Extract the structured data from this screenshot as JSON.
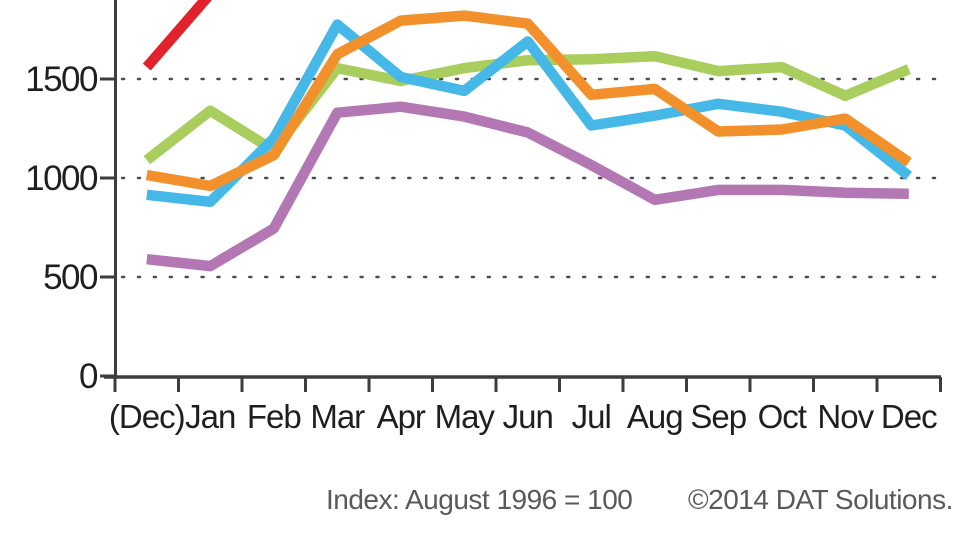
{
  "chart_data": {
    "type": "line",
    "categories": [
      "(Dec)",
      "Jan",
      "Feb",
      "Mar",
      "Apr",
      "May",
      "Jun",
      "Jul",
      "Aug",
      "Sep",
      "Oct",
      "Nov",
      "Dec"
    ],
    "y_ticks": [
      0,
      500,
      1000,
      1500
    ],
    "ylim_visible": [
      0,
      1900
    ],
    "grid": "dotted horizontal lines at 500, 1000, 1500",
    "legend_position": "none-visible (chart cropped at top)",
    "series": [
      {
        "name": "purple-series",
        "color": "#b377b3",
        "values": [
          590,
          555,
          745,
          1330,
          1360,
          1310,
          1230,
          1065,
          890,
          940,
          940,
          925,
          920
        ]
      },
      {
        "name": "green-series",
        "color": "#a9ce5d",
        "values": [
          1090,
          1340,
          1140,
          1555,
          1490,
          1555,
          1595,
          1600,
          1615,
          1540,
          1560,
          1415,
          1550
        ]
      },
      {
        "name": "blue-series",
        "color": "#45b8e8",
        "values": [
          915,
          880,
          1200,
          1775,
          1510,
          1440,
          1690,
          1265,
          1315,
          1375,
          1335,
          1265,
          1010
        ]
      },
      {
        "name": "orange-series",
        "color": "#f2912c",
        "values": [
          1015,
          960,
          1115,
          1625,
          1795,
          1820,
          1780,
          1420,
          1450,
          1235,
          1245,
          1300,
          1080
        ]
      },
      {
        "name": "red-series",
        "color": "#e2222b",
        "values": [
          1560,
          1930,
          null,
          null,
          null,
          null,
          null,
          null,
          null,
          null,
          null,
          null,
          null
        ]
      }
    ],
    "footnote": "Index: August 1996 = 100",
    "copyright": "©2014 DAT Solutions.",
    "appearance": {
      "background": "#ffffff",
      "axis_color": "#3d3d3d",
      "grid_color": "#4d4d4d",
      "label_color": "#1f1f1f",
      "footer_color": "#58595b",
      "line_width": 10.5
    }
  }
}
